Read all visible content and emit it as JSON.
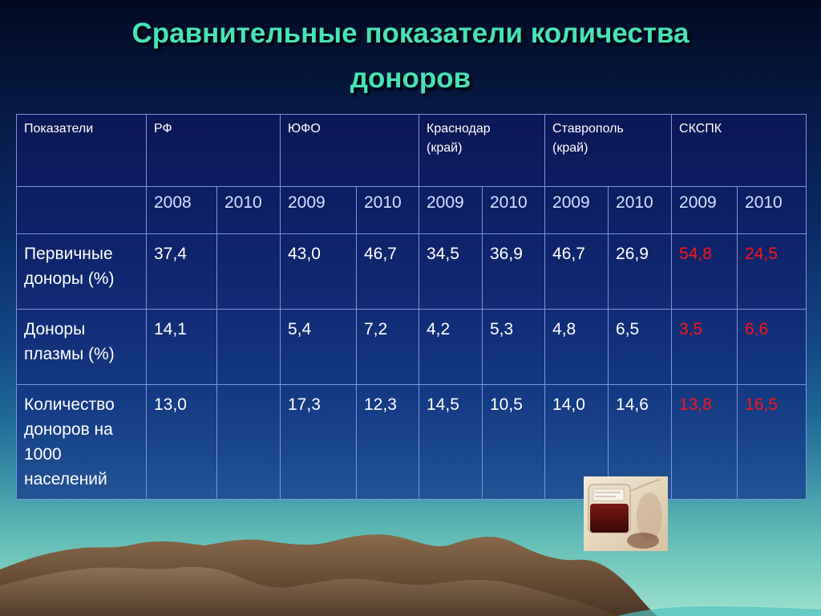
{
  "slide": {
    "title_line1": "Сравнительные показатели количества",
    "title_line2": "доноров"
  },
  "table": {
    "header": {
      "indicator": "Показатели",
      "rf": "РФ",
      "yufo": "ЮФО",
      "krasnodar_line1": "Краснодар",
      "krasnodar_line2": "(край)",
      "stavropol_line1": "Ставрополь",
      "stavropol_line2": "(край)",
      "skspk": "СКСПК"
    },
    "years": [
      "2008",
      "2010",
      "2009",
      "2010",
      "2009",
      "2010",
      "2009",
      "2010",
      "2009",
      "2010"
    ],
    "rows": [
      {
        "label_line1": "Первичные",
        "label_line2": "доноры (%)",
        "values": [
          "37,4",
          "",
          "43,0",
          "46,7",
          "34,5",
          "36,9",
          "46,7",
          "26,9",
          "54,8",
          "24,5"
        ]
      },
      {
        "label_line1": "Доноры",
        "label_line2": "плазмы (%)",
        "values": [
          "14,1",
          "",
          "5,4",
          "7,2",
          "4,2",
          "5,3",
          "4,8",
          "6,5",
          "3,5",
          "6,6"
        ]
      },
      {
        "label_line1": "Количество",
        "label_line2": "доноров на",
        "label_line3": "1000",
        "label_line4": "населений",
        "values": [
          "13,0",
          "",
          "17,3",
          "12,3",
          "14,5",
          "10,5",
          "14,0",
          "14,6",
          "13,8",
          "16,5"
        ]
      }
    ]
  },
  "colors": {
    "title": "#47e2b6",
    "highlight": "#ff1212",
    "text": "#ffffff"
  }
}
